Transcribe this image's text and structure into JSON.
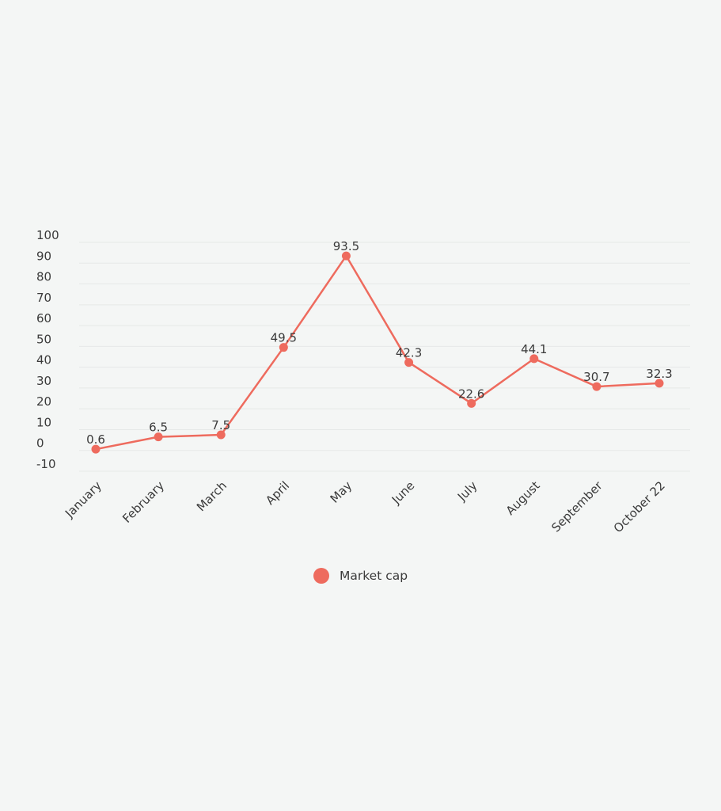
{
  "chart_data": {
    "type": "line",
    "categories": [
      "January",
      "February",
      "March",
      "April",
      "May",
      "June",
      "July",
      "August",
      "September",
      "October 22"
    ],
    "series": [
      {
        "name": "Market cap",
        "values": [
          0.6,
          6.5,
          7.5,
          49.5,
          93.5,
          42.3,
          22.6,
          44.1,
          30.7,
          32.3
        ]
      }
    ],
    "data_labels": [
      "0.6",
      "6.5",
      "7.5",
      "49.5",
      "93.5",
      "42.3",
      "22.6",
      "44.1",
      "30.7",
      "32.3"
    ],
    "y_ticks": [
      100,
      90,
      80,
      70,
      60,
      50,
      40,
      30,
      20,
      10,
      0,
      -10
    ],
    "ylim": [
      -10,
      100
    ],
    "grid": true,
    "legend_position": "bottom-center",
    "title": "",
    "xlabel": "",
    "ylabel": "",
    "colors": {
      "series": "#ee6b5e",
      "grid": "#e6e9e8",
      "text": "#3a3a3a",
      "background": "#f4f6f5"
    }
  }
}
